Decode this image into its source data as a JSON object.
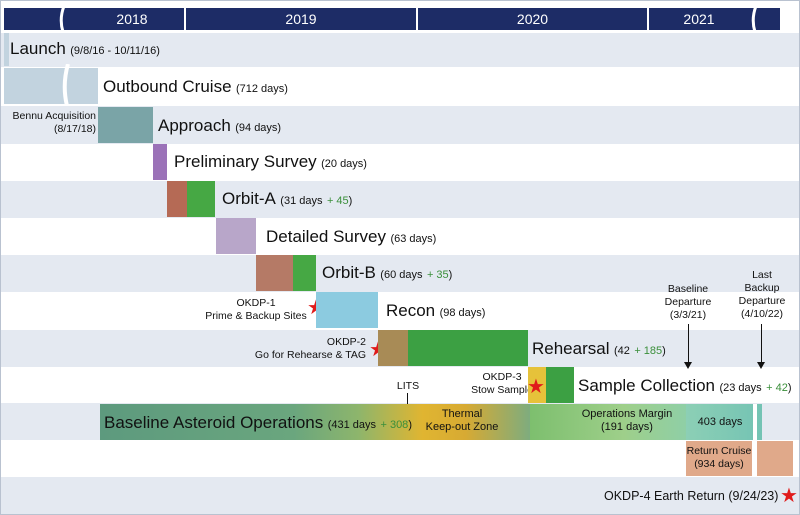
{
  "years": [
    "2018",
    "2019",
    "2020",
    "2021"
  ],
  "phases": {
    "launch": {
      "name": "Launch",
      "detail": "(9/8/16 - 10/11/16)"
    },
    "cruise": {
      "name": "Outbound Cruise",
      "detail": "(712 days)"
    },
    "approach": {
      "name": "Approach",
      "detail": "(94 days)"
    },
    "preliminary_survey": {
      "name": "Preliminary Survey",
      "detail": "(20 days)"
    },
    "orbit_a": {
      "name": "Orbit-A",
      "detail": "(31 days",
      "plus": "+ 45",
      "close": ")"
    },
    "detailed_survey": {
      "name": "Detailed Survey",
      "detail": "(63 days)"
    },
    "orbit_b": {
      "name": "Orbit-B",
      "detail": "(60 days",
      "plus": "+ 35",
      "close": ")"
    },
    "recon": {
      "name": "Recon",
      "detail": "(98 days)"
    },
    "rehearsal": {
      "name": "Rehearsal",
      "detail": "(42",
      "plus": "+ 185",
      "close": ")"
    },
    "sample_collection": {
      "name": "Sample Collection",
      "detail": "(23 days",
      "plus": "+ 42",
      "close": ")"
    },
    "baseline_ops": {
      "name": "Baseline Asteroid Operations",
      "detail": "(431 days",
      "plus": "+ 308",
      "close": ")"
    },
    "thermal": {
      "line1": "Thermal",
      "line2": "Keep-out Zone"
    },
    "ops_margin": {
      "line1": "Operations Margin",
      "line2": "(191 days)"
    },
    "days_403": "403 days",
    "return_cruise": {
      "line1": "Return Cruise",
      "line2": "(934 days)"
    }
  },
  "milestones": {
    "bennu_acq": {
      "line1": "Bennu Acquisition",
      "line2": "(8/17/18)"
    },
    "okdp1": {
      "line1": "OKDP-1",
      "line2": "Prime & Backup Sites"
    },
    "okdp2": {
      "line1": "OKDP-2",
      "line2": "Go for Rehearse & TAG"
    },
    "okdp3": {
      "line1": "OKDP-3",
      "line2": "Stow Sample"
    },
    "lits": "LITS",
    "baseline_departure": {
      "line1": "Baseline",
      "line2": "Departure",
      "line3": "(3/3/21)"
    },
    "last_backup": {
      "line1": "Last",
      "line2": "Backup",
      "line3": "Departure",
      "line4": "(4/10/22)"
    },
    "okdp4": "OKDP-4 Earth Return (9/24/23)"
  },
  "colors": {
    "header": "#1d2c66",
    "stripe": "#e4e9f1",
    "launch": "#c2d3df",
    "approach": "#7aa4a7",
    "preliminary": "#9b72b8",
    "orbit_brown": "#b56a55",
    "orbit_green": "#46a844",
    "detailed": "#b8a6c9",
    "recon": "#8ccbe0",
    "rehearsal_brown": "#a88b56",
    "rehearsal_green": "#3ca043",
    "star": "#e01b1b",
    "return": "#e0a98a"
  }
}
